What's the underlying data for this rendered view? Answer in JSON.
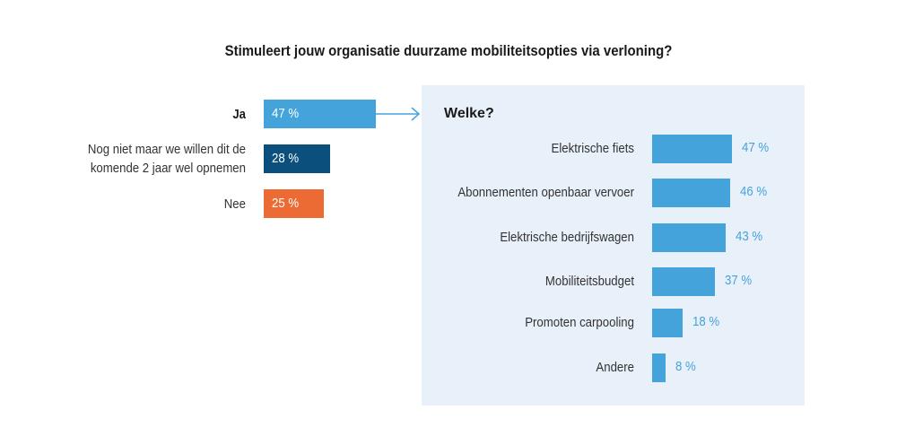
{
  "chart_data": [
    {
      "type": "bar",
      "orientation": "horizontal",
      "title": "Stimuleert jouw organisatie duurzame mobiliteitsopties via verloning?",
      "categories": [
        "Ja",
        "Nog niet maar we willen dit de komende 2 jaar wel opnemen",
        "Nee"
      ],
      "category_lines": [
        [
          "Ja"
        ],
        [
          "Nog niet maar we willen dit de",
          "komende 2 jaar wel opnemen"
        ],
        [
          "Nee"
        ]
      ],
      "values": [
        47,
        28,
        25
      ],
      "labels": [
        "47 %",
        "28 %",
        "25 %"
      ],
      "colors": [
        "#45a3dc",
        "#0b4f7c",
        "#ec6a34"
      ],
      "bold_category": "Ja"
    },
    {
      "type": "bar",
      "orientation": "horizontal",
      "title": "Welke?",
      "categories": [
        "Elektrische fiets",
        "Abonnementen openbaar vervoer",
        "Elektrische bedrijfswagen",
        "Mobiliteitsbudget",
        "Promoten carpooling",
        "Andere"
      ],
      "values": [
        47,
        46,
        43,
        37,
        18,
        8
      ],
      "labels": [
        "47 %",
        "46 %",
        "43 %",
        "37 %",
        "18 %",
        "8 %"
      ],
      "color": "#45a3dc",
      "background": "#e8f0fa"
    }
  ],
  "colors": {
    "arrow": "#45a3dc"
  }
}
